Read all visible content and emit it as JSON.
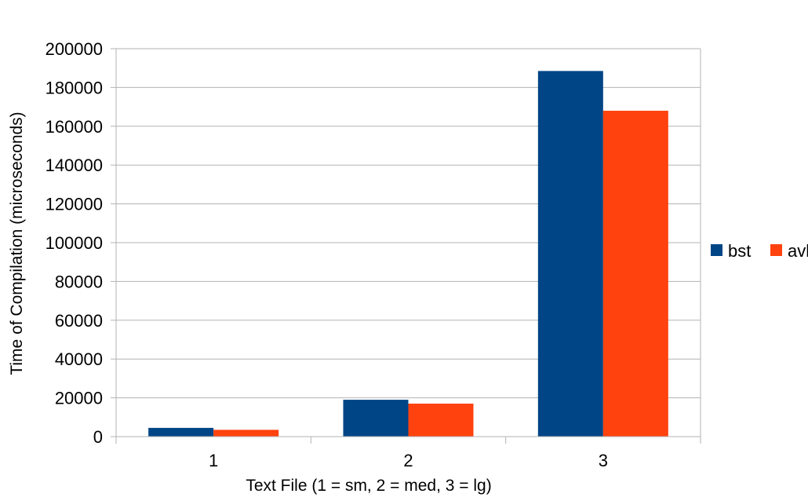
{
  "chart_data": {
    "type": "bar",
    "title": "",
    "xlabel": "Text File (1 = sm, 2 = med, 3 = lg)",
    "ylabel": "Time of Compilation (microseconds)",
    "categories": [
      "1",
      "2",
      "3"
    ],
    "series": [
      {
        "name": "bst",
        "color": "#004586",
        "values": [
          4500,
          19000,
          188500
        ]
      },
      {
        "name": "avl",
        "color": "#ff420e",
        "values": [
          3500,
          17000,
          168000
        ]
      }
    ],
    "ylim": [
      0,
      200000
    ],
    "yticks": [
      0,
      20000,
      40000,
      60000,
      80000,
      100000,
      120000,
      140000,
      160000,
      180000,
      200000
    ],
    "grid": true,
    "legend_position": "right"
  }
}
